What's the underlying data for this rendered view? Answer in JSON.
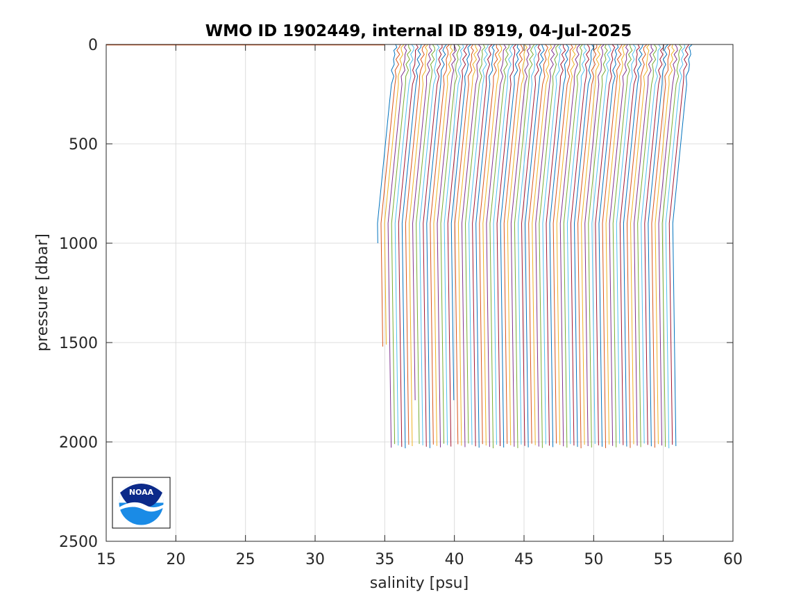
{
  "chart_data": {
    "type": "line",
    "title": "WMO ID 1902449, internal ID 8919, 04-Jul-2025",
    "xlabel": "salinity [psu]",
    "ylabel": "pressure [dbar]",
    "xlim": [
      15,
      60
    ],
    "ylim": [
      0,
      2500
    ],
    "y_reversed": true,
    "grid": true,
    "xticks": [
      15,
      20,
      25,
      30,
      35,
      40,
      45,
      50,
      55,
      60
    ],
    "yticks": [
      0,
      500,
      1000,
      1500,
      2000,
      2500
    ],
    "xtick_labels": [
      "15",
      "20",
      "25",
      "30",
      "35",
      "40",
      "45",
      "50",
      "55",
      "60"
    ],
    "ytick_labels": [
      "0",
      "500",
      "1000",
      "1500",
      "2000",
      "2500"
    ],
    "colors": [
      "#0072BD",
      "#D95319",
      "#EDB120",
      "#7E2F8E",
      "#77AC30",
      "#4DBEEE",
      "#A2142F"
    ],
    "profiles": {
      "count": 85,
      "start_salinity_deep": 34.6,
      "end_salinity_deep": 55.8,
      "max_pressure": 2020,
      "short_profiles": [
        {
          "index": 0,
          "max_pressure": 1000
        },
        {
          "index": 1,
          "max_pressure": 1520
        },
        {
          "index": 2,
          "max_pressure": 1510
        },
        {
          "index": 10,
          "max_pressure": 1790
        },
        {
          "index": 21,
          "max_pressure": 1790
        }
      ],
      "surface_line": {
        "from_salinity": 15,
        "to_salinity": 35,
        "pressure": 0
      }
    },
    "logo": {
      "text": "NOAA",
      "position": "bottom-left"
    }
  }
}
